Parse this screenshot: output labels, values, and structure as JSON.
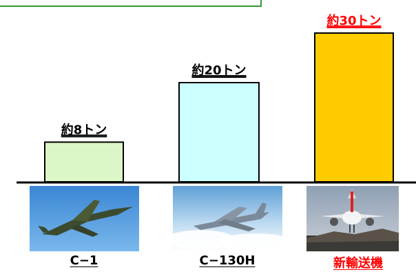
{
  "chart_data": {
    "type": "bar",
    "categories": [
      "C−1",
      "C−130H",
      "新輸送機"
    ],
    "values": [
      8,
      20,
      30
    ],
    "value_labels": [
      "約8トン",
      "約20トン",
      "約30トン"
    ],
    "highlight_category": "新輸送機",
    "ylim": [
      0,
      30
    ]
  },
  "colors": {
    "bars": [
      "#ddf6c8",
      "#ccffff",
      "#ffcc00"
    ],
    "bar_stroke": "#000000",
    "highlight_text": "#ff0000",
    "normal_text": "#000000",
    "frame_border": "#2f9a2f"
  },
  "photos": [
    {
      "icon": "c1-aircraft-photo"
    },
    {
      "icon": "c130h-aircraft-photo"
    },
    {
      "icon": "new-transport-aircraft-photo"
    }
  ]
}
